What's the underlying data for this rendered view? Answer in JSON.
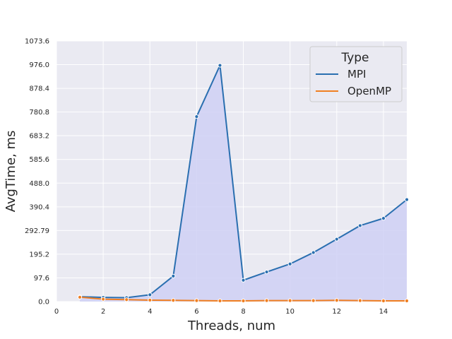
{
  "chart_data": {
    "type": "line",
    "title": "",
    "xlabel": "Threads, num",
    "ylabel": "AvgTime, ms",
    "xlim": [
      0,
      15
    ],
    "ylim": [
      0,
      1073.6
    ],
    "x_ticks": [
      "0",
      "2",
      "4",
      "6",
      "8",
      "10",
      "12",
      "14"
    ],
    "y_ticks": [
      "0.0",
      "97.6",
      "195.2",
      "292.79",
      "390.4",
      "488.0",
      "585.6",
      "683.2",
      "780.8",
      "878.4",
      "976.0",
      "1073.6"
    ],
    "grid": true,
    "legend": {
      "title": "Type",
      "placement": "top-right"
    },
    "x": [
      1,
      2,
      3,
      4,
      5,
      6,
      7,
      8,
      9,
      10,
      11,
      12,
      13,
      14,
      15
    ],
    "series": [
      {
        "name": "MPI",
        "color": "#2a6fb0",
        "fill": "#cfd0f4",
        "values": [
          20,
          17,
          16,
          28,
          105,
          762,
          973,
          88,
          122,
          155,
          202,
          257,
          313,
          343,
          420
        ]
      },
      {
        "name": "OpenMP",
        "color": "#f07f22",
        "values": [
          18,
          10,
          8,
          6,
          5,
          4,
          3,
          3,
          4,
          4,
          4,
          5,
          4,
          3,
          3
        ]
      }
    ]
  }
}
